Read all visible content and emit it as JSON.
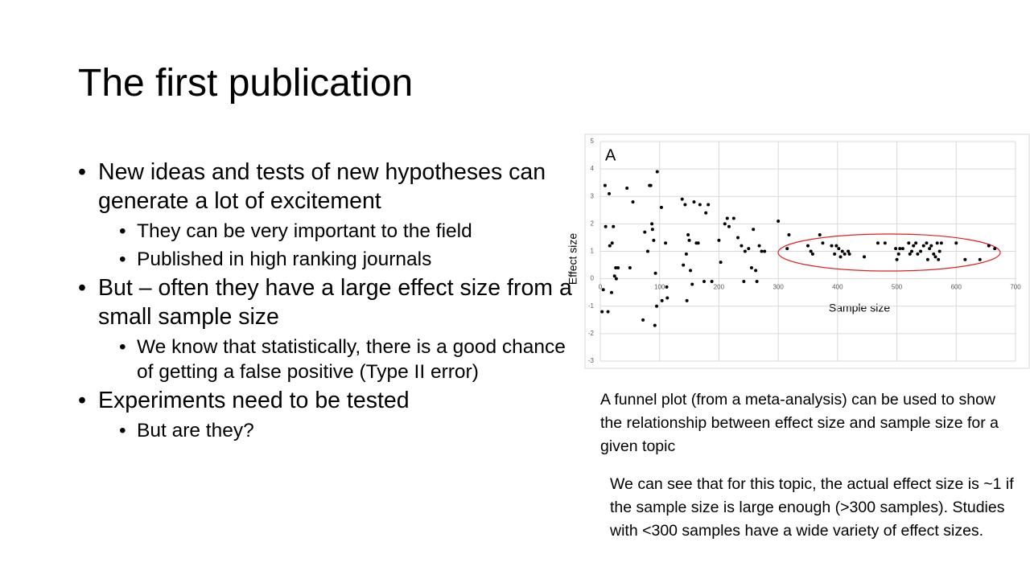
{
  "title": "The first publication",
  "bullets": [
    {
      "text": "New ideas and tests of new hypotheses can generate a lot of excitement",
      "sub": [
        "They can be very important to the field",
        "Published in high ranking journals"
      ]
    },
    {
      "text": "But – often they have a large effect size from a small sample size",
      "sub": [
        "We know that statistically, there is a good chance of getting a false positive (Type II error)"
      ]
    },
    {
      "text": "Experiments need to be tested",
      "sub": [
        "But are they?"
      ]
    }
  ],
  "captions": [
    "A funnel plot (from a meta-analysis) can be used to show the relationship between effect size and sample size for a given topic",
    "We can see that for this topic, the actual effect size is ~1 if the sample size is large enough (>300 samples). Studies with <300 samples have a wide variety of effect sizes."
  ],
  "chart_data": {
    "type": "scatter",
    "annotation": "A",
    "x_label": "Sample size",
    "y_label": "Effect size",
    "color": "#000000",
    "grid": true,
    "xlim": [
      0,
      700
    ],
    "ylim": [
      -3,
      5
    ],
    "xticks": [
      0,
      100,
      200,
      300,
      400,
      500,
      600,
      700
    ],
    "yticks": [
      -3,
      -2,
      -1,
      0,
      1,
      2,
      3,
      4,
      5
    ],
    "x": [
      3,
      5,
      8,
      9,
      13,
      15,
      16,
      19,
      20,
      22,
      24,
      26,
      27,
      30,
      45,
      50,
      55,
      72,
      75,
      80,
      83,
      85,
      87,
      88,
      90,
      92,
      93,
      95,
      96,
      103,
      104,
      110,
      112,
      113,
      138,
      140,
      143,
      145,
      146,
      148,
      150,
      152,
      155,
      158,
      162,
      165,
      168,
      175,
      178,
      182,
      188,
      200,
      203,
      210,
      214,
      217,
      225,
      232,
      238,
      242,
      244,
      250,
      255,
      258,
      262,
      264,
      268,
      272,
      277,
      300,
      315,
      318,
      350,
      355,
      358,
      370,
      375,
      390,
      395,
      398,
      402,
      405,
      408,
      412,
      418,
      420,
      445,
      468,
      480,
      498,
      500,
      503,
      505,
      510,
      520,
      522,
      525,
      528,
      532,
      535,
      540,
      545,
      550,
      552,
      555,
      558,
      562,
      565,
      568,
      570,
      572,
      575,
      600,
      615,
      640,
      655,
      665
    ],
    "values": [
      -1.2,
      -0.4,
      3.4,
      1.9,
      -1.2,
      3.1,
      1.2,
      -0.5,
      1.3,
      1.9,
      0.1,
      0.4,
      0,
      0.4,
      3.3,
      0.4,
      2.8,
      -1.5,
      1.7,
      1.0,
      3.4,
      3.4,
      2.0,
      1.8,
      1.4,
      -1.7,
      0.2,
      -1.0,
      3.9,
      2.6,
      -0.8,
      1.3,
      -0.3,
      -0.7,
      2.9,
      0.5,
      2.7,
      0.9,
      -0.8,
      1.6,
      1.4,
      0.3,
      -0.2,
      2.8,
      1.3,
      1.3,
      2.7,
      -0.1,
      2.4,
      2.7,
      -0.1,
      1.4,
      0.6,
      2.0,
      2.2,
      1.9,
      2.2,
      1.5,
      1.2,
      -0.1,
      1.0,
      1.1,
      0.4,
      1.8,
      0.3,
      -0.1,
      1.2,
      1.0,
      1.0,
      2.1,
      1.1,
      1.6,
      1.2,
      1.0,
      0.9,
      1.6,
      1.3,
      1.2,
      0.9,
      1.2,
      1.1,
      0.8,
      1.0,
      0.9,
      1.0,
      0.9,
      0.8,
      1.3,
      1.3,
      1.1,
      0.7,
      0.9,
      1.1,
      1.1,
      1.3,
      0.9,
      1.0,
      1.2,
      1.3,
      0.9,
      1.0,
      1.2,
      1.3,
      0.7,
      1.1,
      1.2,
      0.9,
      0.8,
      1.3,
      0.7,
      1.0,
      1.3,
      1.3,
      0.7,
      0.7,
      1.2,
      1.1
    ]
  }
}
